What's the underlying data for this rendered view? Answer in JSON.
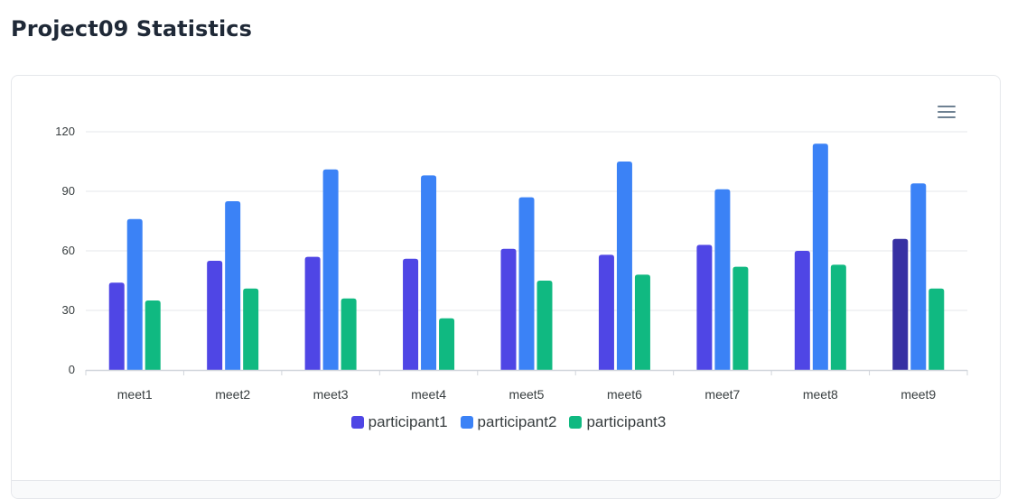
{
  "page": {
    "title": "Project09 Statistics"
  },
  "toolbar": {
    "menu_icon": "hamburger-menu-icon"
  },
  "colors": {
    "participant1": "#4f46e5",
    "participant1_active": "#3730a3",
    "participant2": "#3b82f6",
    "participant3": "#10b981",
    "grid": "#e5e7eb",
    "axis_label": "#373d3f"
  },
  "chart_data": {
    "type": "bar",
    "categories": [
      "meet1",
      "meet2",
      "meet3",
      "meet4",
      "meet5",
      "meet6",
      "meet7",
      "meet8",
      "meet9"
    ],
    "series": [
      {
        "name": "participant1",
        "values": [
          44,
          55,
          57,
          56,
          61,
          58,
          63,
          60,
          66
        ]
      },
      {
        "name": "participant2",
        "values": [
          76,
          85,
          101,
          98,
          87,
          105,
          91,
          114,
          94
        ]
      },
      {
        "name": "participant3",
        "values": [
          35,
          41,
          36,
          26,
          45,
          48,
          52,
          53,
          41
        ]
      }
    ],
    "yticks": [
      "0",
      "30",
      "60",
      "90",
      "120"
    ],
    "ylim": [
      0,
      120
    ],
    "grid": true,
    "legend_position": "bottom-center",
    "highlighted": {
      "series": 0,
      "category": 8
    }
  }
}
